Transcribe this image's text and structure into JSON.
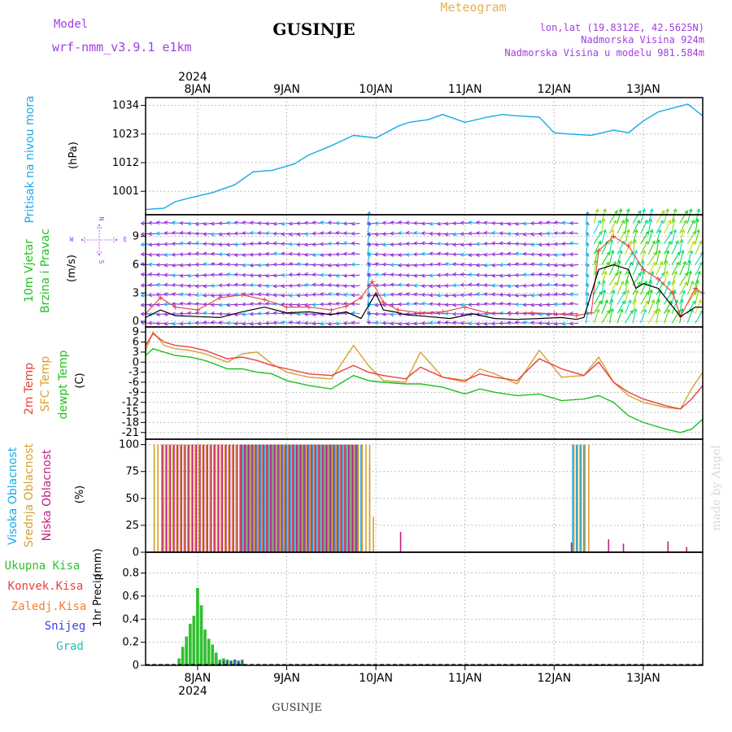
{
  "header": {
    "model_label": "Model",
    "model_name": "wrf-nmm_v3.9.1 e1km",
    "title": "GUSINJE",
    "meteogram": "Meteogram",
    "coords": "lon,lat (19.8312E, 42.5625N)",
    "elevation": "Nadmorska Visina 924m",
    "model_elevation": "Nadmorska Visina u modelu 981.584m",
    "footer_title": "GUSINJE",
    "watermark": "made by Angel"
  },
  "colors": {
    "purple": "#a040e0",
    "pressure": "#18a8e8",
    "t2m": "#e84040",
    "sfc": "#d8a030",
    "dew": "#20c020",
    "low_cloud": "#c02080",
    "mid_cloud": "#d8a030",
    "high_cloud": "#18a8e8",
    "precip_total": "#30c030",
    "snow": "#4040e0",
    "grad": "#20c0b0"
  },
  "x_axis": {
    "year": "2024",
    "days": [
      "8JAN",
      "9JAN",
      "10JAN",
      "11JAN",
      "12JAN",
      "13JAN"
    ],
    "range_hours": [
      -14,
      136
    ]
  },
  "chart_data": [
    {
      "type": "line",
      "name": "pressure",
      "ylabel_main": "Pritisak na nivou mora",
      "ylabel_unit": "(hPa)",
      "ylim": [
        992,
        1037
      ],
      "yticks": [
        "1034",
        "1023",
        "1012",
        "1001"
      ],
      "ytick_values": [
        1034,
        1023,
        1012,
        1001
      ],
      "x": [
        -14,
        -9,
        -6,
        -2,
        4,
        10,
        15,
        20,
        26,
        30,
        36,
        42,
        48,
        54,
        57,
        62,
        66,
        72,
        78,
        82,
        86,
        92,
        96,
        100,
        106,
        112,
        116,
        120,
        124,
        128,
        132,
        136
      ],
      "values": [
        994,
        994.5,
        997,
        998.5,
        1000.5,
        1003.5,
        1008.5,
        1009,
        1011.5,
        1015,
        1018.5,
        1022.5,
        1021.5,
        1026,
        1027.5,
        1028.5,
        1030.5,
        1027.5,
        1029.5,
        1030.5,
        1030,
        1029.5,
        1023.5,
        1023,
        1022.5,
        1024.5,
        1023.5,
        1028,
        1031.5,
        1033,
        1034.5,
        1030
      ]
    },
    {
      "type": "line",
      "name": "wind",
      "ylabel_main": "10m Vjetar",
      "ylabel_sub": "Brzina i Pravac",
      "ylabel_unit": "(m/s)",
      "compass": [
        "N",
        "W",
        "E",
        "S"
      ],
      "ylim": [
        -0.6,
        11.3
      ],
      "yticks": [
        "9",
        "6",
        "3",
        "0"
      ],
      "ytick_values": [
        9,
        6,
        3,
        0
      ],
      "series": [
        {
          "name": "speed",
          "x": [
            -14,
            -10,
            -6,
            0,
            6,
            12,
            18,
            24,
            30,
            36,
            40,
            44,
            48,
            50,
            53,
            56,
            62,
            68,
            74,
            80,
            86,
            92,
            98,
            102,
            104,
            108,
            112,
            116,
            118,
            120,
            124,
            128,
            130,
            134,
            136
          ],
          "values": [
            0.4,
            1.2,
            0.6,
            0.5,
            0.4,
            1.0,
            1.5,
            0.9,
            1.0,
            0.7,
            1.0,
            0.3,
            3.0,
            1.2,
            1.0,
            0.7,
            0.5,
            0.3,
            0.8,
            0.3,
            0.2,
            0.3,
            0.4,
            0.2,
            0.4,
            5.5,
            6.0,
            5.5,
            3.5,
            4.0,
            3.5,
            1.5,
            0.5,
            1.5,
            1.5
          ]
        },
        {
          "name": "gust",
          "x": [
            -14,
            -10,
            -6,
            0,
            6,
            12,
            18,
            24,
            30,
            36,
            40,
            44,
            47,
            50,
            54,
            60,
            66,
            72,
            78,
            84,
            90,
            96,
            102,
            106,
            108,
            112,
            116,
            120,
            124,
            128,
            130,
            134,
            136
          ],
          "values": [
            0.8,
            2.5,
            1.5,
            1.2,
            2.5,
            2.8,
            2.3,
            1.5,
            1.5,
            1.2,
            1.6,
            2.5,
            4.2,
            2.0,
            1.2,
            0.9,
            1.0,
            1.5,
            0.9,
            0.8,
            0.9,
            0.8,
            0.6,
            0.9,
            7.5,
            9.0,
            8.0,
            5.5,
            4.5,
            3.0,
            0.5,
            3.5,
            3.0
          ]
        }
      ]
    },
    {
      "type": "line",
      "name": "temperature",
      "ylabel_main": "2m Temp",
      "ylabel_sub": "SFC Temp",
      "ylabel_sub2": "dewpt Temp",
      "ylabel_unit": "(C)",
      "ylim": [
        -23,
        10.5
      ],
      "yticks": [
        "9",
        "6",
        "3",
        "0",
        "-3",
        "-6",
        "-9",
        "-12",
        "-15",
        "-18",
        "-21"
      ],
      "ytick_values": [
        9,
        6,
        3,
        0,
        -3,
        -6,
        -9,
        -12,
        -15,
        -18,
        -21
      ],
      "series": [
        {
          "name": "2m",
          "x": [
            -14,
            -12,
            -9,
            -6,
            -2,
            2,
            8,
            12,
            16,
            20,
            24,
            30,
            36,
            42,
            46,
            50,
            56,
            60,
            66,
            72,
            76,
            80,
            86,
            92,
            98,
            104,
            108,
            112,
            116,
            120,
            126,
            130,
            133,
            136
          ],
          "values": [
            5,
            8.5,
            6,
            5,
            4.5,
            3.5,
            1,
            1.5,
            0.5,
            -1,
            -2,
            -3.5,
            -4,
            -1,
            -3,
            -4,
            -5,
            -1.5,
            -4.5,
            -5.5,
            -3.5,
            -4.5,
            -5.5,
            1,
            -2,
            -4,
            0,
            -6,
            -9,
            -11,
            -13,
            -14,
            -11,
            -7
          ]
        },
        {
          "name": "sfc",
          "x": [
            -14,
            -12,
            -9,
            -6,
            -2,
            2,
            8,
            12,
            16,
            20,
            24,
            30,
            36,
            42,
            46,
            50,
            56,
            60,
            66,
            72,
            76,
            80,
            86,
            92,
            98,
            104,
            108,
            112,
            116,
            120,
            126,
            130,
            133,
            136
          ],
          "values": [
            3.5,
            9,
            5,
            4,
            3.5,
            2.5,
            0,
            2.5,
            3,
            -0.5,
            -3,
            -4.5,
            -5,
            5,
            -1,
            -5.5,
            -6,
            3,
            -4.5,
            -6,
            -2,
            -3.5,
            -6.5,
            3.5,
            -4.5,
            -4,
            1.5,
            -6,
            -10,
            -12,
            -13.5,
            -14,
            -8,
            -3
          ]
        },
        {
          "name": "dewpt",
          "x": [
            -14,
            -12,
            -9,
            -6,
            -2,
            2,
            8,
            12,
            16,
            20,
            24,
            30,
            36,
            42,
            46,
            50,
            56,
            60,
            66,
            72,
            76,
            80,
            86,
            92,
            98,
            104,
            108,
            112,
            116,
            120,
            126,
            130,
            133,
            136
          ],
          "values": [
            2,
            4,
            3,
            2,
            1.5,
            0.5,
            -2,
            -2,
            -3,
            -3.5,
            -5.5,
            -7,
            -8,
            -4,
            -5.5,
            -6,
            -6.5,
            -6.5,
            -7.5,
            -9.5,
            -8,
            -9,
            -10,
            -9.5,
            -11.5,
            -11,
            -10,
            -12,
            -16,
            -18,
            -20,
            -21,
            -20,
            -17
          ]
        }
      ]
    },
    {
      "type": "bar",
      "name": "cloud",
      "ylabel_main": "Visoka Oblacnost",
      "ylabel_sub": "Srednja Oblacnost",
      "ylabel_sub2": "Niska Oblacnost",
      "ylabel_unit": "(%)",
      "ylim": [
        0,
        105
      ],
      "yticks": [
        "100",
        "75",
        "50",
        "25",
        "0"
      ],
      "ytick_values": [
        100,
        75,
        50,
        25,
        0
      ],
      "blocks": [
        {
          "series": "high",
          "x_start": 12,
          "x_end": 44,
          "value": 100
        },
        {
          "series": "mid",
          "x_start": -12,
          "x_end": 46,
          "value": 100
        },
        {
          "series": "low",
          "x_start": -10,
          "x_end": 42,
          "value": 100
        },
        {
          "series": "high",
          "x_start": 101,
          "x_end": 104,
          "value": 100
        },
        {
          "series": "mid",
          "x_start": 101,
          "x_end": 105,
          "value": 100
        }
      ],
      "bars": [
        {
          "series": "mid",
          "x": -12,
          "value": 95
        },
        {
          "series": "low",
          "x": -10,
          "value": 50
        },
        {
          "series": "mid",
          "x": 46,
          "value": 82
        },
        {
          "series": "mid",
          "x": 47,
          "value": 33
        },
        {
          "series": "low",
          "x": 54,
          "value": 19
        },
        {
          "series": "low",
          "x": 100,
          "value": 9
        },
        {
          "series": "low",
          "x": 110,
          "value": 12
        },
        {
          "series": "low",
          "x": 114,
          "value": 8
        },
        {
          "series": "low",
          "x": 126,
          "value": 10
        },
        {
          "series": "low",
          "x": 131,
          "value": 5
        }
      ]
    },
    {
      "type": "bar",
      "name": "precip",
      "ylabel_main": "1hr Precip",
      "ylabel_unit": "(mm)",
      "legend": [
        "Ukupna Kisa",
        "Konvek.Kisa",
        "Zaledj.Kisa",
        "Snijeg",
        "Grad"
      ],
      "ylim": [
        0,
        0.98
      ],
      "yticks": [
        "0.8",
        "0.6",
        "0.4",
        "0.2",
        "0"
      ],
      "ytick_values": [
        0.8,
        0.6,
        0.4,
        0.2,
        0
      ],
      "x": [
        -5,
        -4,
        -3,
        -2,
        -1,
        0,
        1,
        2,
        3,
        4,
        5,
        6,
        7,
        8,
        9,
        10,
        11,
        12
      ],
      "values": [
        0.06,
        0.16,
        0.25,
        0.36,
        0.43,
        0.67,
        0.52,
        0.31,
        0.23,
        0.18,
        0.11,
        0.05,
        0.06,
        0.05,
        0.04,
        0.05,
        0.04,
        0.05
      ],
      "snow": [
        0,
        0,
        0,
        0,
        0,
        0,
        0,
        0,
        0,
        0,
        0,
        0.03,
        0.04,
        0.04,
        0.04,
        0.05,
        0.04,
        0.04
      ]
    }
  ]
}
